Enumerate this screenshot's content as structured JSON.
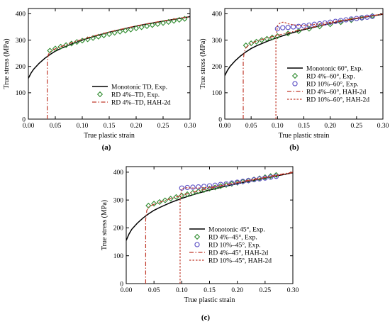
{
  "chart_data": [
    {
      "type": "line",
      "panel_label": "(a)",
      "xlabel": "True plastic strain",
      "ylabel": "True stress (MPa)",
      "xlim": [
        0.0,
        0.3
      ],
      "ylim": [
        0,
        420
      ],
      "xticks": [
        "0.00",
        "0.05",
        "0.10",
        "0.15",
        "0.20",
        "0.25",
        "0.30"
      ],
      "yticks": [
        "0",
        "100",
        "200",
        "300",
        "400"
      ],
      "grid": false,
      "legend_position": "bottom-right",
      "series": [
        {
          "name": "Monotonic TD, Exp.",
          "style": "solid",
          "color": "#000000",
          "x": [
            0.0,
            0.005,
            0.01,
            0.02,
            0.03,
            0.04,
            0.05,
            0.06,
            0.08,
            0.1,
            0.12,
            0.15,
            0.18,
            0.2,
            0.22,
            0.25,
            0.28,
            0.3
          ],
          "y": [
            155,
            175,
            190,
            212,
            230,
            245,
            258,
            268,
            285,
            300,
            313,
            330,
            344,
            353,
            361,
            372,
            382,
            389
          ]
        },
        {
          "name": "RD 4%–TD, Exp.",
          "style": "diamond",
          "color": "#2e8b2e",
          "x": [
            0.04,
            0.05,
            0.06,
            0.07,
            0.08,
            0.09,
            0.1,
            0.11,
            0.12,
            0.13,
            0.14,
            0.15,
            0.16,
            0.17,
            0.18,
            0.19,
            0.2,
            0.21,
            0.22,
            0.23,
            0.24,
            0.25,
            0.26,
            0.27,
            0.28,
            0.29
          ],
          "y": [
            260,
            268,
            275,
            281,
            287,
            293,
            298,
            303,
            308,
            313,
            318,
            323,
            328,
            332,
            336,
            340,
            345,
            349,
            353,
            357,
            361,
            365,
            369,
            373,
            377,
            381
          ]
        },
        {
          "name": "RD 4%–TD, HAH-2d",
          "style": "dashdot",
          "color": "#c0392b",
          "x": [
            0.035,
            0.035,
            0.037,
            0.04,
            0.045,
            0.05,
            0.06,
            0.08,
            0.1,
            0.12,
            0.15,
            0.18,
            0.2,
            0.22,
            0.25,
            0.28,
            0.3
          ],
          "y": [
            0,
            215,
            245,
            255,
            262,
            267,
            275,
            290,
            303,
            315,
            331,
            345,
            354,
            362,
            373,
            383,
            389
          ]
        }
      ]
    },
    {
      "type": "line",
      "panel_label": "(b)",
      "xlabel": "True plastic strain",
      "ylabel": "True stress (MPa)",
      "xlim": [
        0.0,
        0.3
      ],
      "ylim": [
        0,
        420
      ],
      "xticks": [
        "0.00",
        "0.05",
        "0.10",
        "0.15",
        "0.20",
        "0.25",
        "0.30"
      ],
      "yticks": [
        "0",
        "100",
        "200",
        "300",
        "400"
      ],
      "grid": false,
      "legend_position": "bottom-right",
      "series": [
        {
          "name": "Monotonic 60°, Exp.",
          "style": "solid",
          "color": "#000000",
          "x": [
            0.0,
            0.005,
            0.01,
            0.02,
            0.03,
            0.04,
            0.05,
            0.06,
            0.08,
            0.1,
            0.12,
            0.15,
            0.18,
            0.2,
            0.22,
            0.25,
            0.28,
            0.3
          ],
          "y": [
            165,
            185,
            200,
            222,
            240,
            255,
            268,
            278,
            295,
            310,
            323,
            340,
            354,
            363,
            371,
            382,
            392,
            398
          ]
        },
        {
          "name": "RD 4%–60°, Exp.",
          "style": "diamond",
          "color": "#2e8b2e",
          "x": [
            0.04,
            0.05,
            0.06,
            0.07,
            0.08,
            0.09,
            0.1,
            0.12,
            0.14,
            0.16,
            0.18,
            0.2,
            0.22,
            0.24,
            0.26,
            0.28
          ],
          "y": [
            280,
            288,
            294,
            300,
            305,
            310,
            315,
            325,
            334,
            343,
            352,
            360,
            368,
            376,
            384,
            392
          ]
        },
        {
          "name": "RD 10%–60°, Exp.",
          "style": "circle",
          "color": "#5b4fc4",
          "x": [
            0.1,
            0.11,
            0.12,
            0.13,
            0.14,
            0.15,
            0.16,
            0.17,
            0.18,
            0.19,
            0.2,
            0.21,
            0.22,
            0.23,
            0.24,
            0.25,
            0.26,
            0.27,
            0.28
          ],
          "y": [
            343,
            347,
            348,
            350,
            352,
            354,
            357,
            360,
            362,
            365,
            368,
            371,
            374,
            377,
            380,
            382,
            385,
            387,
            390
          ]
        },
        {
          "name": "RD 4%–60°, HAH-2d",
          "style": "dashdot",
          "color": "#c0392b",
          "x": [
            0.035,
            0.035,
            0.037,
            0.04,
            0.045,
            0.05,
            0.06,
            0.08,
            0.1,
            0.12,
            0.15,
            0.18,
            0.2,
            0.22,
            0.25,
            0.28,
            0.3
          ],
          "y": [
            0,
            225,
            255,
            270,
            280,
            287,
            296,
            308,
            318,
            328,
            342,
            355,
            364,
            372,
            383,
            393,
            399
          ]
        },
        {
          "name": "RD 10%–60°, HAH-2d",
          "style": "dashed",
          "color": "#c0392b",
          "x": [
            0.097,
            0.097,
            0.099,
            0.1,
            0.105,
            0.11,
            0.115,
            0.12,
            0.13,
            0.14,
            0.15,
            0.18,
            0.2,
            0.22,
            0.25,
            0.28,
            0.3
          ],
          "y": [
            0,
            300,
            335,
            355,
            365,
            368,
            366,
            362,
            358,
            356,
            355,
            362,
            368,
            374,
            383,
            393,
            399
          ]
        }
      ]
    },
    {
      "type": "line",
      "panel_label": "(c)",
      "xlabel": "True plastic strain",
      "ylabel": "True stress (MPa)",
      "xlim": [
        0.0,
        0.3
      ],
      "ylim": [
        0,
        420
      ],
      "xticks": [
        "0.00",
        "0.05",
        "0.10",
        "0.15",
        "0.20",
        "0.25",
        "0.30"
      ],
      "yticks": [
        "0",
        "100",
        "200",
        "300",
        "400"
      ],
      "grid": false,
      "legend_position": "bottom-right",
      "series": [
        {
          "name": "Monotonic 45°, Exp.",
          "style": "solid",
          "color": "#000000",
          "x": [
            0.0,
            0.005,
            0.01,
            0.02,
            0.03,
            0.04,
            0.05,
            0.06,
            0.08,
            0.1,
            0.12,
            0.15,
            0.18,
            0.2,
            0.22,
            0.25,
            0.28,
            0.3
          ],
          "y": [
            155,
            178,
            195,
            217,
            235,
            250,
            263,
            273,
            291,
            306,
            319,
            336,
            350,
            359,
            367,
            379,
            390,
            398
          ]
        },
        {
          "name": "RD 4%–45°, Exp.",
          "style": "diamond",
          "color": "#2e8b2e",
          "x": [
            0.04,
            0.05,
            0.06,
            0.07,
            0.08,
            0.09,
            0.1,
            0.11,
            0.12,
            0.13,
            0.14,
            0.15,
            0.16,
            0.17,
            0.18,
            0.19,
            0.2,
            0.21,
            0.22,
            0.23,
            0.24,
            0.25,
            0.26,
            0.27
          ],
          "y": [
            280,
            287,
            293,
            299,
            305,
            311,
            316,
            321,
            326,
            331,
            336,
            341,
            345,
            350,
            354,
            358,
            362,
            366,
            370,
            374,
            378,
            382,
            386,
            390
          ]
        },
        {
          "name": "RD 10%–45°, Exp.",
          "style": "circle",
          "color": "#5b4fc4",
          "x": [
            0.1,
            0.11,
            0.12,
            0.13,
            0.14,
            0.15,
            0.16,
            0.17,
            0.18,
            0.19,
            0.2,
            0.21,
            0.22,
            0.23,
            0.24,
            0.25,
            0.26,
            0.27
          ],
          "y": [
            343,
            345,
            346,
            347,
            349,
            351,
            353,
            356,
            358,
            361,
            364,
            367,
            370,
            373,
            376,
            379,
            382,
            385
          ]
        },
        {
          "name": "RD 4%–45°, HAH-2d",
          "style": "dashdot",
          "color": "#c0392b",
          "x": [
            0.035,
            0.035,
            0.037,
            0.04,
            0.045,
            0.05,
            0.06,
            0.08,
            0.1,
            0.12,
            0.15,
            0.18,
            0.2,
            0.22,
            0.25,
            0.28,
            0.3
          ],
          "y": [
            0,
            230,
            262,
            274,
            280,
            285,
            292,
            305,
            317,
            328,
            342,
            355,
            363,
            371,
            382,
            393,
            400
          ]
        },
        {
          "name": "RD 10%–45°, HAH-2d",
          "style": "dashed",
          "color": "#c0392b",
          "x": [
            0.097,
            0.097,
            0.099,
            0.1,
            0.105,
            0.11,
            0.12,
            0.13,
            0.15,
            0.18,
            0.2,
            0.22,
            0.25,
            0.28,
            0.3
          ],
          "y": [
            0,
            300,
            330,
            340,
            344,
            344,
            343,
            343,
            346,
            355,
            362,
            369,
            380,
            391,
            398
          ]
        }
      ]
    }
  ]
}
